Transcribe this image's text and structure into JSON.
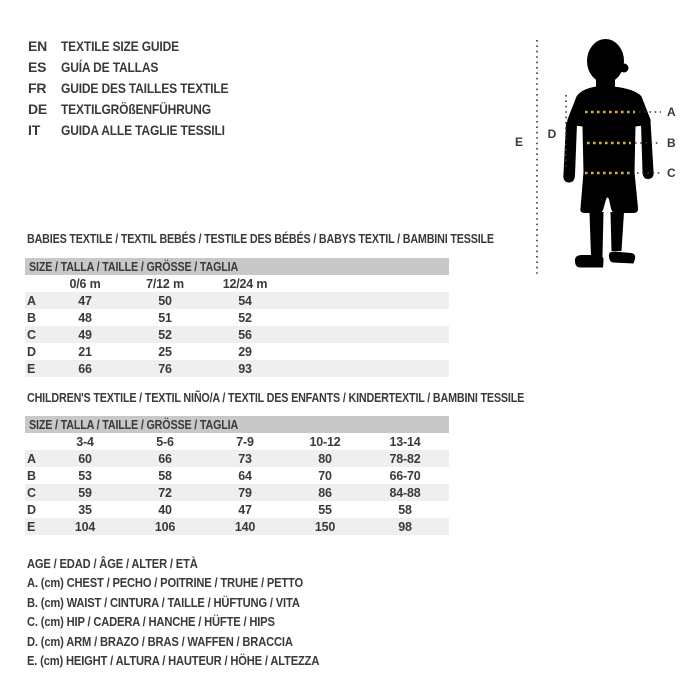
{
  "header": {
    "languages": [
      {
        "code": "EN",
        "text": "TEXTILE SIZE GUIDE"
      },
      {
        "code": "ES",
        "text": "GUÍA DE TALLAS"
      },
      {
        "code": "FR",
        "text": "GUIDE DES TAILLES TEXTILE"
      },
      {
        "code": "DE",
        "text": "TEXTILGRÖßENFÜHRUNG"
      },
      {
        "code": "IT",
        "text": "GUIDA ALLE TAGLIE TESSILI"
      }
    ]
  },
  "figure": {
    "markers": {
      "chest": "A",
      "waist": "B",
      "hip": "C",
      "arm": "D",
      "height": "E"
    }
  },
  "babies_table": {
    "title": "BABIES TEXTILE / TEXTIL BEBÉS / TESTILE DES BÉBÉS / BABYS TEXTIL / BAMBINI TESSILE",
    "size_header": "SIZE / TALLA / TAILLE / GRÖSSE / TAGLIA",
    "columns": [
      "0/6 m",
      "7/12 m",
      "12/24 m"
    ],
    "rows": [
      {
        "label": "A",
        "values": [
          "47",
          "50",
          "54"
        ]
      },
      {
        "label": "B",
        "values": [
          "48",
          "51",
          "52"
        ]
      },
      {
        "label": "C",
        "values": [
          "49",
          "52",
          "56"
        ]
      },
      {
        "label": "D",
        "values": [
          "21",
          "25",
          "29"
        ]
      },
      {
        "label": "E",
        "values": [
          "66",
          "76",
          "93"
        ]
      }
    ]
  },
  "children_table": {
    "title": "CHILDREN'S TEXTILE / TEXTIL NIÑO/A / TEXTIL DES ENFANTS / KINDERTEXTIL / BAMBINI TESSILE",
    "size_header": "SIZE / TALLA / TAILLE / GRÖSSE / TAGLIA",
    "columns": [
      "3-4",
      "5-6",
      "7-9",
      "10-12",
      "13-14"
    ],
    "rows": [
      {
        "label": "A",
        "values": [
          "60",
          "66",
          "73",
          "80",
          "78-82"
        ]
      },
      {
        "label": "B",
        "values": [
          "53",
          "58",
          "64",
          "70",
          "66-70"
        ]
      },
      {
        "label": "C",
        "values": [
          "59",
          "72",
          "79",
          "86",
          "84-88"
        ]
      },
      {
        "label": "D",
        "values": [
          "35",
          "40",
          "47",
          "55",
          "58"
        ]
      },
      {
        "label": "E",
        "values": [
          "104",
          "106",
          "140",
          "150",
          "98"
        ]
      }
    ]
  },
  "legend": {
    "lines": [
      "AGE / EDAD / ÂGE / ALTER / ETÀ",
      "A. (cm) CHEST / PECHO / POITRINE / TRUHE / PETTO",
      "B. (cm) WAIST / CINTURA / TAILLE / HÜFTUNG / VITA",
      "C. (cm) HIP / CADERA / HANCHE / HÜFTE / HIPS",
      "D. (cm) ARM / BRAZO / BRAS / WAFFEN / BRACCIA",
      "E. (cm) HEIGHT / ALTURA / HAUTEUR / HÖHE / ALTEZZA"
    ]
  },
  "colors": {
    "text": "#3a3a3a",
    "size_bar": "#c8c8c8",
    "row_stripe": "#efefef",
    "marker_yellow": "#d9b42c",
    "silhouette": "#000000"
  }
}
